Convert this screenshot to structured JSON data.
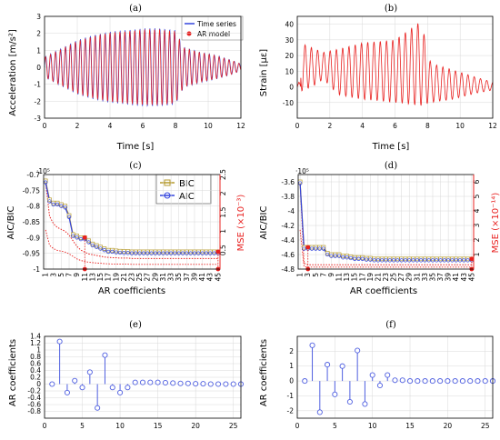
{
  "colors": {
    "blue": "#3344dd",
    "red": "#e8201f",
    "bic": "#b59a2e",
    "stem": "#4f5fe0"
  },
  "chart_data": [
    {
      "panel": "(a)",
      "type": "line",
      "xlabel": "Time [s]",
      "ylabel": "Acceleration [m/s²]",
      "xlim": [
        0,
        12
      ],
      "ylim": [
        -3,
        3
      ],
      "xticks": [
        "0",
        "2",
        "4",
        "6",
        "8",
        "10",
        "12"
      ],
      "yticks": [
        "-3",
        "-2",
        "-1",
        "0",
        "1",
        "2",
        "3"
      ],
      "legend": {
        "position": "top-right",
        "entries": [
          "Time series",
          "AR model"
        ]
      },
      "envelope": [
        {
          "t": 0,
          "a": 0.6
        },
        {
          "t": 1,
          "a": 1.1
        },
        {
          "t": 2,
          "a": 1.6
        },
        {
          "t": 3,
          "a": 1.9
        },
        {
          "t": 4,
          "a": 2.1
        },
        {
          "t": 5,
          "a": 2.2
        },
        {
          "t": 6,
          "a": 2.3
        },
        {
          "t": 7,
          "a": 2.3
        },
        {
          "t": 8,
          "a": 2.2
        },
        {
          "t": 8.5,
          "a": 1.2
        },
        {
          "t": 9.5,
          "a": 0.9
        },
        {
          "t": 10.5,
          "a": 0.7
        },
        {
          "t": 11.5,
          "a": 0.4
        },
        {
          "t": 12,
          "a": 0.2
        }
      ]
    },
    {
      "panel": "(b)",
      "type": "line",
      "xlabel": "Time [s]",
      "ylabel": "Strain [με]",
      "xlim": [
        0,
        12
      ],
      "ylim": [
        -20,
        45
      ],
      "xticks": [
        "0",
        "2",
        "4",
        "6",
        "8",
        "10",
        "12"
      ],
      "yticks": [
        "-10",
        "0",
        "10",
        "20",
        "30",
        "40"
      ],
      "peaks": [
        {
          "t": 0.2,
          "max": 28,
          "min": -3
        },
        {
          "t": 0.9,
          "max": 25,
          "min": 0
        },
        {
          "t": 1.6,
          "max": 22,
          "min": 5
        },
        {
          "t": 2.5,
          "max": 24,
          "min": -5
        },
        {
          "t": 4,
          "max": 28,
          "min": -8
        },
        {
          "t": 6,
          "max": 30,
          "min": -10
        },
        {
          "t": 7.6,
          "max": 42,
          "min": -12
        },
        {
          "t": 8.2,
          "max": 15,
          "min": -10
        },
        {
          "t": 9.5,
          "max": 11,
          "min": -8
        },
        {
          "t": 11,
          "max": 6,
          "min": -4
        },
        {
          "t": 12,
          "max": 3,
          "min": -2
        }
      ]
    },
    {
      "panel": "(c)",
      "type": "line",
      "xlabel": "AR coefficients",
      "ylabel": "AIC/BIC",
      "ylabel2": "MSE (×10⁻³)",
      "y_exponent": "·10⁵",
      "ylim": [
        -1.0,
        -0.7
      ],
      "ylim2": [
        0,
        2.5
      ],
      "yticks": [
        "-0.7",
        "-0.75",
        "-0.8",
        "-0.85",
        "-0.9",
        "-0.95",
        "-1"
      ],
      "yticks2": [
        "0.5",
        "1",
        "1.5",
        "2",
        "2.5"
      ],
      "xticks": [
        "1",
        "3",
        "5",
        "7",
        "9",
        "11",
        "13",
        "15",
        "17",
        "19",
        "21",
        "23",
        "25",
        "27",
        "29",
        "31",
        "33",
        "35",
        "37",
        "39",
        "41",
        "43",
        "45"
      ],
      "legend": {
        "position": "top-right",
        "entries": [
          "BIC",
          "AIC"
        ]
      },
      "highlight_x": [
        11,
        45
      ],
      "series": [
        {
          "name": "BIC",
          "values": [
            -0.72,
            -0.78,
            -0.79,
            -0.79,
            -0.795,
            -0.8,
            -0.83,
            -0.89,
            -0.895,
            -0.9,
            -0.9,
            -0.91,
            -0.92,
            -0.925,
            -0.93,
            -0.935,
            -0.94,
            -0.94,
            -0.942,
            -0.943,
            -0.944,
            -0.944,
            -0.945,
            -0.945,
            -0.945,
            -0.945,
            -0.945,
            -0.945,
            -0.945,
            -0.945,
            -0.945,
            -0.945,
            -0.945,
            -0.945,
            -0.945,
            -0.945,
            -0.945,
            -0.945,
            -0.945,
            -0.945,
            -0.945,
            -0.945,
            -0.945,
            -0.945,
            -0.945
          ]
        },
        {
          "name": "AIC",
          "values": [
            -0.725,
            -0.785,
            -0.795,
            -0.795,
            -0.8,
            -0.805,
            -0.835,
            -0.895,
            -0.9,
            -0.905,
            -0.905,
            -0.915,
            -0.925,
            -0.93,
            -0.935,
            -0.94,
            -0.945,
            -0.945,
            -0.947,
            -0.948,
            -0.949,
            -0.949,
            -0.95,
            -0.95,
            -0.95,
            -0.95,
            -0.95,
            -0.95,
            -0.95,
            -0.95,
            -0.95,
            -0.95,
            -0.95,
            -0.95,
            -0.95,
            -0.95,
            -0.95,
            -0.95,
            -0.95,
            -0.95,
            -0.95,
            -0.95,
            -0.95,
            -0.95,
            -0.95
          ]
        },
        {
          "values": [
            2.3,
            1.4,
            1.2,
            1.1,
            1.05,
            1.0,
            0.9,
            0.75,
            0.6,
            0.5,
            0.45,
            0.4,
            0.38,
            0.36,
            0.34,
            0.32,
            0.31,
            0.3,
            0.3,
            0.29,
            0.29,
            0.29,
            0.28,
            0.28,
            0.28,
            0.28,
            0.28,
            0.28,
            0.28,
            0.28,
            0.28,
            0.28,
            0.28,
            0.28,
            0.28,
            0.28,
            0.28,
            0.28,
            0.28,
            0.28,
            0.28,
            0.28,
            0.28,
            0.28,
            0.28
          ]
        }
      ]
    },
    {
      "panel": "(d)",
      "type": "line",
      "xlabel": "AR coefficients",
      "ylabel": "AIC/BIC",
      "ylabel2": "MSE (×10⁻¹⁴)",
      "y_exponent": "·10⁵",
      "ylim": [
        -4.8,
        -3.5
      ],
      "ylim2": [
        0,
        6.5
      ],
      "yticks": [
        "-3.6",
        "-3.8",
        "-4",
        "-4.2",
        "-4.4",
        "-4.6",
        "-4.8"
      ],
      "yticks2": [
        "1",
        "2",
        "3",
        "4",
        "5",
        "6"
      ],
      "xticks": [
        "1",
        "3",
        "5",
        "7",
        "9",
        "11",
        "13",
        "15",
        "17",
        "19",
        "21",
        "23",
        "25",
        "27",
        "29",
        "31",
        "33",
        "35",
        "37",
        "39",
        "41",
        "43",
        "45"
      ],
      "highlight_x": [
        3,
        45
      ],
      "series": [
        {
          "name": "BIC",
          "values": [
            -3.6,
            -4.5,
            -4.5,
            -4.5,
            -4.5,
            -4.5,
            -4.5,
            -4.58,
            -4.6,
            -4.6,
            -4.6,
            -4.62,
            -4.62,
            -4.63,
            -4.64,
            -4.64,
            -4.64,
            -4.65,
            -4.65,
            -4.66,
            -4.66,
            -4.66,
            -4.66,
            -4.66,
            -4.66,
            -4.66,
            -4.66,
            -4.66,
            -4.66,
            -4.66,
            -4.66,
            -4.66,
            -4.66,
            -4.66,
            -4.66,
            -4.66,
            -4.66,
            -4.66,
            -4.66,
            -4.66,
            -4.66,
            -4.66,
            -4.66,
            -4.66,
            -4.66
          ]
        },
        {
          "name": "AIC",
          "values": [
            -3.62,
            -4.52,
            -4.52,
            -4.52,
            -4.52,
            -4.52,
            -4.52,
            -4.6,
            -4.62,
            -4.62,
            -4.62,
            -4.64,
            -4.64,
            -4.65,
            -4.66,
            -4.66,
            -4.66,
            -4.67,
            -4.67,
            -4.68,
            -4.68,
            -4.68,
            -4.68,
            -4.68,
            -4.68,
            -4.68,
            -4.68,
            -4.68,
            -4.68,
            -4.68,
            -4.68,
            -4.68,
            -4.68,
            -4.68,
            -4.68,
            -4.68,
            -4.68,
            -4.68,
            -4.68,
            -4.68,
            -4.68,
            -4.68,
            -4.68,
            -4.68,
            -4.68
          ]
        },
        {
          "values": [
            6.0,
            0.4,
            0.3,
            0.3,
            0.3,
            0.3,
            0.3,
            0.3,
            0.3,
            0.3,
            0.3,
            0.3,
            0.3,
            0.3,
            0.3,
            0.3,
            0.3,
            0.3,
            0.3,
            0.3,
            0.3,
            0.3,
            0.3,
            0.3,
            0.3,
            0.3,
            0.3,
            0.3,
            0.3,
            0.3,
            0.3,
            0.3,
            0.3,
            0.3,
            0.3,
            0.3,
            0.3,
            0.3,
            0.3,
            0.3,
            0.3,
            0.3,
            0.3,
            0.3,
            0.3
          ]
        }
      ]
    },
    {
      "panel": "(e)",
      "type": "stem",
      "ylabel": "AR coefficients",
      "xlim": [
        0,
        26
      ],
      "ylim": [
        -1.0,
        1.4
      ],
      "xticks": [
        "0",
        "5",
        "10",
        "15",
        "20",
        "25"
      ],
      "yticks": [
        "1.4",
        "1.2",
        "1",
        "0.8",
        "0.6",
        "0.4",
        "0.2",
        "0",
        "-0.2",
        "-0.4",
        "-0.6",
        "-0.8"
      ],
      "x": [
        1,
        2,
        3,
        4,
        5,
        6,
        7,
        8,
        9,
        10,
        11,
        12,
        13,
        14,
        15,
        16,
        17,
        18,
        19,
        20,
        21,
        22,
        23,
        24,
        25,
        26
      ],
      "values": [
        0.0,
        1.25,
        -0.25,
        0.1,
        -0.1,
        0.35,
        -0.7,
        0.85,
        -0.1,
        -0.25,
        -0.1,
        0.05,
        0.05,
        0.05,
        0.05,
        0.04,
        0.03,
        0.02,
        0.02,
        0.01,
        0.01,
        0.0,
        0.0,
        0.0,
        0.0,
        0.0
      ]
    },
    {
      "panel": "(f)",
      "type": "stem",
      "ylabel": "AR coefficients",
      "xlim": [
        0,
        26
      ],
      "ylim": [
        -2.5,
        3
      ],
      "xticks": [
        "0",
        "5",
        "10",
        "15",
        "20",
        "25"
      ],
      "yticks": [
        "2",
        "1",
        "0",
        "-1",
        "-2"
      ],
      "x": [
        1,
        2,
        3,
        4,
        5,
        6,
        7,
        8,
        9,
        10,
        11,
        12,
        13,
        14,
        15,
        16,
        17,
        18,
        19,
        20,
        21,
        22,
        23,
        24,
        25,
        26
      ],
      "values": [
        0.0,
        2.4,
        -2.1,
        1.1,
        -0.9,
        1.0,
        -1.4,
        2.05,
        -1.55,
        0.4,
        -0.3,
        0.4,
        0.05,
        0.05,
        0.0,
        0.0,
        0.0,
        0.0,
        0.0,
        0.0,
        0.0,
        0.0,
        0.0,
        0.0,
        0.0,
        0.0
      ]
    }
  ]
}
